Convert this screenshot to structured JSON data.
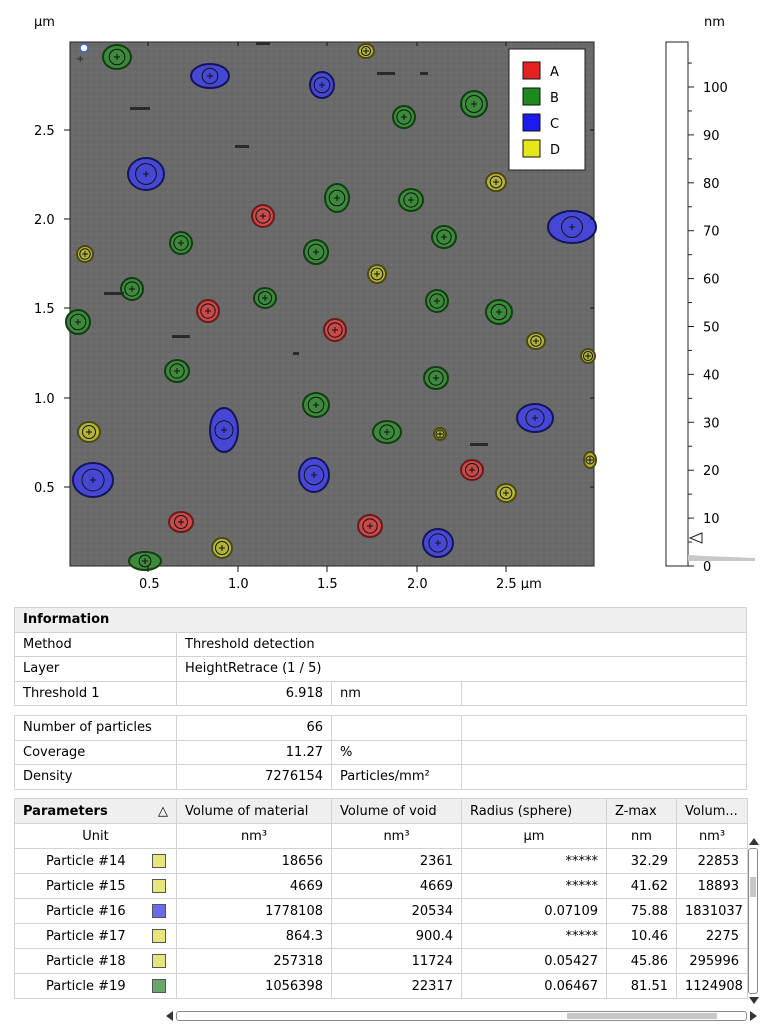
{
  "image": {
    "y_unit": "µm",
    "z_unit": "nm",
    "x_ticks": [
      "0.5",
      "1.0",
      "1.5",
      "2.0",
      "2.5 µm"
    ],
    "y_ticks": [
      "2.5",
      "2.0",
      "1.5",
      "1.0",
      "0.5"
    ],
    "z_ticks": [
      "100",
      "90",
      "80",
      "70",
      "60",
      "50",
      "40",
      "30",
      "20",
      "10",
      "0"
    ],
    "legend": [
      {
        "label": "A",
        "color": "#e52222"
      },
      {
        "label": "B",
        "color": "#1e8a1e"
      },
      {
        "label": "C",
        "color": "#1b1bf0"
      },
      {
        "label": "D",
        "color": "#e6e61a"
      }
    ],
    "background_color": "#6b6b6b"
  },
  "information": {
    "title": "Information",
    "rows": [
      {
        "label": "Method",
        "value": "Threshold detection",
        "unit": ""
      },
      {
        "label": "Layer",
        "value": "HeightRetrace (1 / 5)",
        "unit": ""
      },
      {
        "label": "Threshold 1",
        "value": "6.918",
        "unit": "nm"
      }
    ]
  },
  "stats": {
    "rows": [
      {
        "label": "Number of particles",
        "value": "66",
        "unit": ""
      },
      {
        "label": "Coverage",
        "value": "11.27",
        "unit": "%"
      },
      {
        "label": "Density",
        "value": "7276154",
        "unit": "Particles/mm²"
      }
    ]
  },
  "parameters": {
    "title": "Parameters",
    "sort_icon": "△",
    "columns": [
      "Volume of material",
      "Volume of void",
      "Radius (sphere)",
      "Z-max",
      "Volum..."
    ],
    "unit_label": "Unit",
    "units": [
      "nm³",
      "nm³",
      "µm",
      "nm",
      "nm³"
    ],
    "rows": [
      {
        "name": "Particle #14",
        "class": "D",
        "color": "#e6e67a",
        "values": [
          "18656",
          "2361",
          "*****",
          "32.29",
          "22853"
        ]
      },
      {
        "name": "Particle #15",
        "class": "D",
        "color": "#e6e67a",
        "values": [
          "4669",
          "4669",
          "*****",
          "41.62",
          "18893"
        ]
      },
      {
        "name": "Particle #16",
        "class": "C",
        "color": "#6b6bea",
        "values": [
          "1778108",
          "20534",
          "0.07109",
          "75.88",
          "1831037"
        ]
      },
      {
        "name": "Particle #17",
        "class": "D",
        "color": "#e6e67a",
        "values": [
          "864.3",
          "900.4",
          "*****",
          "10.46",
          "2275"
        ]
      },
      {
        "name": "Particle #18",
        "class": "D",
        "color": "#e6e67a",
        "values": [
          "257318",
          "11724",
          "0.05427",
          "45.86",
          "295996"
        ]
      },
      {
        "name": "Particle #19",
        "class": "B",
        "color": "#6aa56a",
        "values": [
          "1056398",
          "22317",
          "0.06467",
          "81.51",
          "1124908"
        ]
      }
    ]
  }
}
